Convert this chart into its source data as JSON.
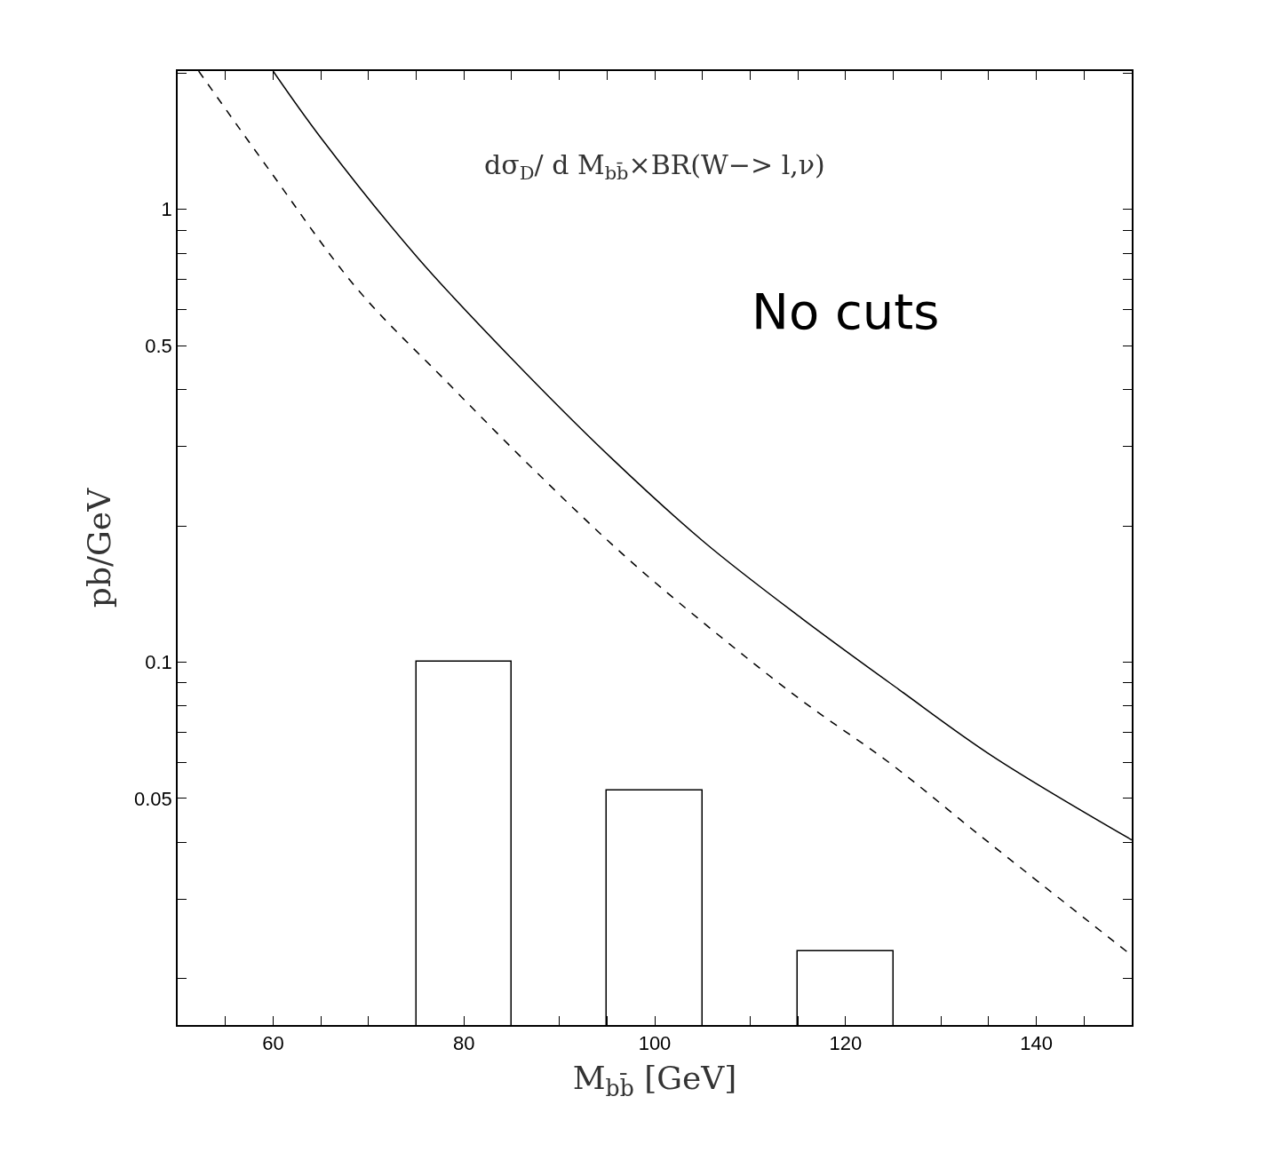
{
  "chart_data": {
    "type": "line",
    "xlabel": "M$_{bb̄}$ [GeV]",
    "ylabel": "pb/GeV",
    "annotations": [
      "dσ$_{D}$/ d M$_{bb̄}$×BR(W−> l,ν)",
      "No cuts"
    ],
    "series": [
      {
        "color": "#000000",
        "line_style": "solid",
        "x": [
          60,
          65,
          75.2,
          85.1,
          95.4,
          105.2,
          115.4,
          125.6,
          135.4,
          150
        ],
        "values": [
          2.02,
          1.44,
          0.78,
          0.466,
          0.283,
          0.184,
          0.125,
          0.087,
          0.062,
          0.0405
        ]
      },
      {
        "color": "#000000",
        "line_style": "dashed",
        "x": [
          52.2,
          59.5,
          68.8,
          78.2,
          87.5,
          96.8,
          106.2,
          115.5,
          124.8,
          134.1,
          150
        ],
        "values": [
          2.02,
          1.23,
          0.668,
          0.416,
          0.264,
          0.172,
          0.117,
          0.082,
          0.0595,
          0.0414,
          0.0225
        ]
      },
      {
        "type": "bar",
        "color": "#000000",
        "x": [
          80,
          100,
          120
        ],
        "values": [
          0.1,
          0.052,
          0.023
        ]
      }
    ],
    "log": "y",
    "xlim": [
      50,
      150
    ],
    "ylim": [
      0.0158,
      2.02
    ],
    "xticks": [
      {
        "value": 55,
        "label": null
      },
      60,
      {
        "value": 65,
        "label": null
      },
      {
        "value": 70,
        "label": null
      },
      {
        "value": 75,
        "label": null
      },
      80,
      {
        "value": 85,
        "label": null
      },
      {
        "value": 90,
        "label": null
      },
      {
        "value": 95,
        "label": null
      },
      100,
      {
        "value": 105,
        "label": null
      },
      {
        "value": 110,
        "label": null
      },
      {
        "value": 115,
        "label": null
      },
      120,
      {
        "value": 125,
        "label": null
      },
      {
        "value": 130,
        "label": null
      },
      {
        "value": 135,
        "label": null
      },
      140,
      {
        "value": 145,
        "label": null
      }
    ],
    "yticks": [
      {
        "value": 0.02,
        "label": null
      },
      {
        "value": 0.03,
        "label": null
      },
      {
        "value": 0.04,
        "label": null
      },
      0.05,
      {
        "value": 0.06,
        "label": null
      },
      {
        "value": 0.07,
        "label": null
      },
      {
        "value": 0.08,
        "label": null
      },
      {
        "value": 0.09,
        "label": null
      },
      0.1,
      {
        "value": 0.2,
        "label": null
      },
      {
        "value": 0.3,
        "label": null
      },
      {
        "value": 0.4,
        "label": null
      },
      0.5,
      {
        "value": 0.6,
        "label": null
      },
      {
        "value": 0.7,
        "label": null
      },
      {
        "value": 0.8,
        "label": null
      },
      {
        "value": 0.9,
        "label": null
      },
      1,
      {
        "value": 2,
        "label": null
      }
    ]
  }
}
